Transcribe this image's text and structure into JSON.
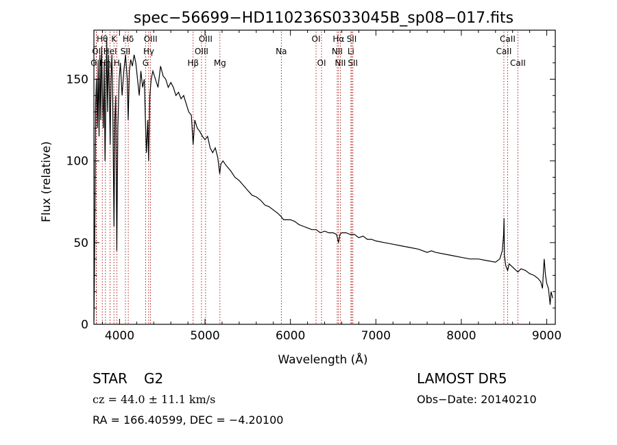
{
  "chart_data": {
    "type": "line",
    "title": "spec−56699−HD110236S033045B_sp08−017.fits",
    "xlabel": "Wavelength (Å)",
    "ylabel": "Flux (relative)",
    "xlim": [
      3700,
      9100
    ],
    "ylim": [
      0,
      180
    ],
    "x_ticks": [
      4000,
      5000,
      6000,
      7000,
      8000,
      9000
    ],
    "y_ticks": [
      0,
      50,
      100,
      150
    ],
    "grid": false,
    "series": [
      {
        "points": [
          [
            3700,
            2
          ],
          [
            3705,
            25
          ],
          [
            3712,
            70
          ],
          [
            3720,
            135
          ],
          [
            3730,
            150
          ],
          [
            3740,
            120
          ],
          [
            3750,
            160
          ],
          [
            3760,
            115
          ],
          [
            3770,
            165
          ],
          [
            3780,
            125
          ],
          [
            3790,
            170
          ],
          [
            3800,
            140
          ],
          [
            3810,
            120
          ],
          [
            3820,
            160
          ],
          [
            3830,
            100
          ],
          [
            3840,
            135
          ],
          [
            3850,
            175
          ],
          [
            3860,
            130
          ],
          [
            3870,
            165
          ],
          [
            3880,
            145
          ],
          [
            3890,
            110
          ],
          [
            3900,
            150
          ],
          [
            3910,
            165
          ],
          [
            3920,
            138
          ],
          [
            3935,
            60
          ],
          [
            3945,
            125
          ],
          [
            3955,
            140
          ],
          [
            3968,
            45
          ],
          [
            3980,
            120
          ],
          [
            3995,
            150
          ],
          [
            4010,
            160
          ],
          [
            4030,
            140
          ],
          [
            4050,
            155
          ],
          [
            4070,
            165
          ],
          [
            4090,
            150
          ],
          [
            4101,
            125
          ],
          [
            4115,
            155
          ],
          [
            4130,
            162
          ],
          [
            4150,
            158
          ],
          [
            4170,
            165
          ],
          [
            4190,
            160
          ],
          [
            4210,
            150
          ],
          [
            4230,
            140
          ],
          [
            4250,
            155
          ],
          [
            4270,
            145
          ],
          [
            4290,
            150
          ],
          [
            4305,
            120
          ],
          [
            4315,
            105
          ],
          [
            4330,
            125
          ],
          [
            4340,
            100
          ],
          [
            4355,
            140
          ],
          [
            4370,
            150
          ],
          [
            4390,
            155
          ],
          [
            4420,
            150
          ],
          [
            4450,
            145
          ],
          [
            4480,
            158
          ],
          [
            4510,
            152
          ],
          [
            4540,
            150
          ],
          [
            4570,
            145
          ],
          [
            4600,
            148
          ],
          [
            4630,
            145
          ],
          [
            4660,
            140
          ],
          [
            4690,
            142
          ],
          [
            4720,
            138
          ],
          [
            4750,
            140
          ],
          [
            4780,
            135
          ],
          [
            4810,
            130
          ],
          [
            4840,
            128
          ],
          [
            4861,
            110
          ],
          [
            4880,
            125
          ],
          [
            4910,
            120
          ],
          [
            4940,
            118
          ],
          [
            4970,
            115
          ],
          [
            5000,
            113
          ],
          [
            5030,
            115
          ],
          [
            5060,
            108
          ],
          [
            5090,
            105
          ],
          [
            5120,
            108
          ],
          [
            5150,
            102
          ],
          [
            5172,
            92
          ],
          [
            5185,
            98
          ],
          [
            5210,
            100
          ],
          [
            5250,
            97
          ],
          [
            5300,
            94
          ],
          [
            5350,
            90
          ],
          [
            5400,
            88
          ],
          [
            5450,
            85
          ],
          [
            5500,
            82
          ],
          [
            5550,
            79
          ],
          [
            5600,
            78
          ],
          [
            5650,
            76
          ],
          [
            5700,
            73
          ],
          [
            5750,
            72
          ],
          [
            5800,
            70
          ],
          [
            5850,
            68
          ],
          [
            5890,
            66
          ],
          [
            5920,
            64
          ],
          [
            6000,
            64
          ],
          [
            6050,
            63
          ],
          [
            6100,
            61
          ],
          [
            6150,
            60
          ],
          [
            6200,
            59
          ],
          [
            6250,
            58
          ],
          [
            6300,
            58
          ],
          [
            6350,
            56
          ],
          [
            6400,
            57
          ],
          [
            6450,
            56
          ],
          [
            6500,
            56
          ],
          [
            6540,
            55
          ],
          [
            6563,
            50
          ],
          [
            6580,
            55
          ],
          [
            6600,
            56
          ],
          [
            6650,
            56
          ],
          [
            6700,
            55
          ],
          [
            6750,
            55
          ],
          [
            6800,
            53
          ],
          [
            6850,
            54
          ],
          [
            6900,
            52
          ],
          [
            6950,
            52
          ],
          [
            7000,
            51
          ],
          [
            7100,
            50
          ],
          [
            7200,
            49
          ],
          [
            7300,
            48
          ],
          [
            7400,
            47
          ],
          [
            7500,
            46
          ],
          [
            7600,
            44
          ],
          [
            7650,
            45
          ],
          [
            7700,
            44
          ],
          [
            7800,
            43
          ],
          [
            7900,
            42
          ],
          [
            8000,
            41
          ],
          [
            8100,
            40
          ],
          [
            8200,
            40
          ],
          [
            8300,
            39
          ],
          [
            8400,
            38
          ],
          [
            8450,
            40
          ],
          [
            8480,
            45
          ],
          [
            8495,
            55
          ],
          [
            8500,
            65
          ],
          [
            8505,
            42
          ],
          [
            8520,
            36
          ],
          [
            8542,
            33
          ],
          [
            8560,
            37
          ],
          [
            8600,
            35
          ],
          [
            8662,
            32
          ],
          [
            8700,
            34
          ],
          [
            8750,
            33
          ],
          [
            8800,
            31
          ],
          [
            8850,
            30
          ],
          [
            8900,
            28
          ],
          [
            8930,
            26
          ],
          [
            8950,
            22
          ],
          [
            8970,
            40
          ],
          [
            8985,
            30
          ],
          [
            9000,
            25
          ],
          [
            9020,
            22
          ],
          [
            9040,
            12
          ],
          [
            9050,
            20
          ],
          [
            9070,
            16
          ]
        ]
      }
    ],
    "annotations": [
      {
        "label": "Hθ",
        "x": 3798,
        "row": 0
      },
      {
        "label": "OI",
        "x": 3730,
        "row": 1
      },
      {
        "label": "OII",
        "x": 3727,
        "row": 2
      },
      {
        "label": "K",
        "x": 3934,
        "row": 0
      },
      {
        "label": "HeI",
        "x": 3889,
        "row": 1
      },
      {
        "label": "Hη",
        "x": 3835,
        "row": 2
      },
      {
        "label": "H",
        "x": 3968,
        "row": 2
      },
      {
        "label": "SII",
        "x": 4069,
        "row": 1
      },
      {
        "label": "Hδ",
        "x": 4102,
        "row": 0
      },
      {
        "label": "OIII",
        "x": 4363,
        "row": 0
      },
      {
        "label": "Hγ",
        "x": 4341,
        "row": 1
      },
      {
        "label": "G",
        "x": 4305,
        "row": 2
      },
      {
        "label": "OIII",
        "x": 5007,
        "row": 0
      },
      {
        "label": "OIII",
        "x": 4959,
        "row": 1
      },
      {
        "label": "Hβ",
        "x": 4861,
        "row": 2
      },
      {
        "label": "Mg",
        "x": 5175,
        "row": 2
      },
      {
        "label": "Na",
        "x": 5893,
        "row": 1
      },
      {
        "label": "OI",
        "x": 6300,
        "row": 0
      },
      {
        "label": "OI",
        "x": 6364,
        "row": 2
      },
      {
        "label": "Hα",
        "x": 6563,
        "row": 0
      },
      {
        "label": "NII",
        "x": 6548,
        "row": 1
      },
      {
        "label": "NII",
        "x": 6584,
        "row": 2
      },
      {
        "label": "SII",
        "x": 6717,
        "row": 0
      },
      {
        "label": "Li",
        "x": 6708,
        "row": 1
      },
      {
        "label": "SII",
        "x": 6731,
        "row": 2
      },
      {
        "label": "CaII",
        "x": 8542,
        "row": 0
      },
      {
        "label": "CaII",
        "x": 8498,
        "row": 1
      },
      {
        "label": "CaII",
        "x": 8662,
        "row": 2
      }
    ]
  },
  "info": {
    "object_class": "STAR",
    "subclass": "G2",
    "cz": "cz = 44.0 ± 11.1 km/s",
    "coords": "RA = 166.40599, DEC =  −4.20100",
    "survey": "LAMOST  DR5",
    "obs_date": "Obs−Date: 20140210"
  }
}
